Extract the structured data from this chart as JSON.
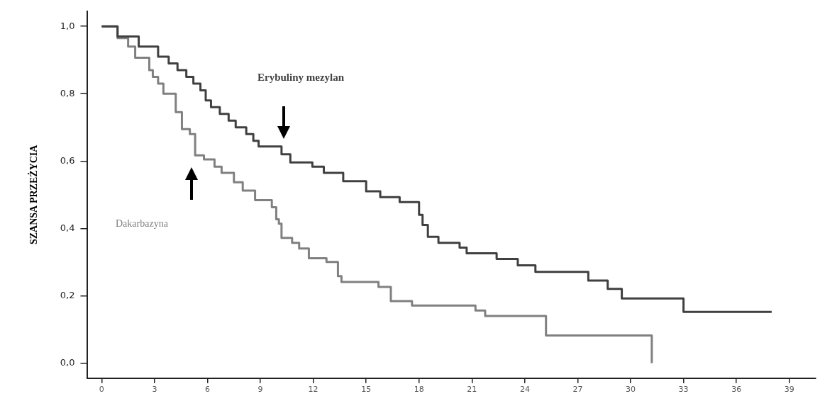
{
  "chart_data": {
    "type": "step",
    "ylabel": "SZANSA PRZEŻYCIA",
    "xlim": [
      -0.8,
      40.5
    ],
    "xticks": [
      0,
      3,
      6,
      9,
      12,
      15,
      18,
      21,
      24,
      27,
      30,
      33,
      36,
      39
    ],
    "ylim": [
      -0.045,
      1.045
    ],
    "yticks": [
      {
        "value": 0,
        "label": "0,0"
      },
      {
        "value": 0.2,
        "label": "0,2"
      },
      {
        "value": 0.4,
        "label": "0,4"
      },
      {
        "value": 0.6,
        "label": "0,6"
      },
      {
        "value": 0.8,
        "label": "0,8"
      },
      {
        "value": 1,
        "label": "1,0"
      }
    ],
    "grid": false,
    "legend": false,
    "marker": "none",
    "line_style": "solid",
    "series": [
      {
        "name": "Erybuliny mezylan",
        "color": "#404040",
        "x": [
          0,
          0.9,
          2.1,
          3.2,
          3.8,
          4.3,
          4.8,
          5.2,
          5.6,
          5.9,
          6.2,
          6.7,
          7.2,
          7.6,
          8.2,
          8.6,
          8.9,
          10.2,
          10.7,
          11.95,
          12.6,
          13.7,
          15.0,
          15.8,
          16.9,
          18.0,
          18.2,
          18.5,
          19.1,
          20.3,
          20.7,
          22.4,
          23.6,
          24.6,
          27.6,
          28.7,
          29.5,
          33.0,
          38.0
        ],
        "values": [
          1.0,
          0.97,
          0.94,
          0.91,
          0.89,
          0.87,
          0.85,
          0.83,
          0.81,
          0.78,
          0.76,
          0.74,
          0.72,
          0.7,
          0.68,
          0.66,
          0.643,
          0.62,
          0.596,
          0.583,
          0.565,
          0.54,
          0.51,
          0.493,
          0.478,
          0.44,
          0.41,
          0.375,
          0.357,
          0.343,
          0.326,
          0.309,
          0.29,
          0.271,
          0.245,
          0.22,
          0.192,
          0.152,
          0.152
        ]
      },
      {
        "name": "Dakarbazyna",
        "color": "#808080",
        "x": [
          0,
          0.9,
          1.5,
          1.9,
          2.7,
          2.9,
          3.2,
          3.5,
          4.2,
          4.55,
          5.0,
          5.3,
          5.8,
          6.4,
          6.8,
          7.5,
          8.0,
          8.7,
          9.65,
          9.9,
          10.05,
          10.2,
          10.8,
          11.2,
          11.75,
          12.75,
          13.4,
          13.6,
          15.7,
          16.4,
          17.6,
          21.2,
          21.75,
          25.2,
          31.2
        ],
        "values": [
          1.0,
          0.965,
          0.94,
          0.907,
          0.87,
          0.85,
          0.83,
          0.8,
          0.745,
          0.695,
          0.68,
          0.617,
          0.605,
          0.583,
          0.565,
          0.537,
          0.512,
          0.484,
          0.463,
          0.427,
          0.414,
          0.372,
          0.357,
          0.34,
          0.311,
          0.3,
          0.258,
          0.241,
          0.226,
          0.184,
          0.171,
          0.156,
          0.14,
          0.082,
          0.0
        ]
      }
    ]
  }
}
